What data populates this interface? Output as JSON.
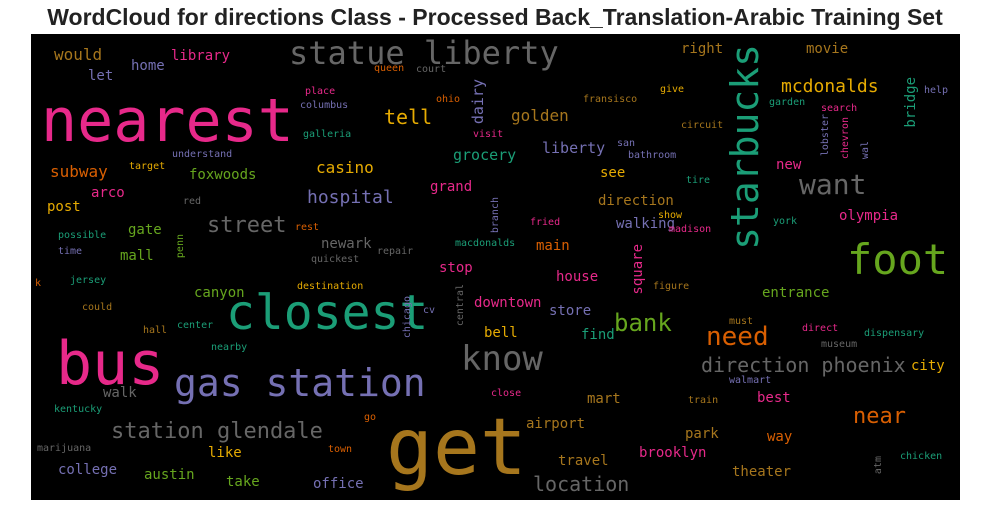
{
  "title": "WordCloud for directions Class - Processed Back_Translation-Arabic Training Set",
  "chart_data": {
    "type": "wordcloud",
    "title": "WordCloud for directions Class - Processed Back_Translation-Arabic Training Set",
    "background": "#000000",
    "colormap": "Dark2",
    "words": [
      {
        "text": "nearest",
        "color": "#e7298a"
      },
      {
        "text": "get",
        "color": "#a6761d"
      },
      {
        "text": "bus",
        "color": "#e7298a"
      },
      {
        "text": "closest",
        "color": "#1b9e77"
      },
      {
        "text": "gas station",
        "color": "#7570b3"
      },
      {
        "text": "statue liberty",
        "color": "#666666"
      },
      {
        "text": "starbucks",
        "color": "#1b9e77"
      },
      {
        "text": "foot",
        "color": "#66a61e"
      },
      {
        "text": "know",
        "color": "#666666"
      },
      {
        "text": "want",
        "color": "#666666"
      },
      {
        "text": "station glendale",
        "color": "#666666"
      },
      {
        "text": "direction phoenix",
        "color": "#666666"
      },
      {
        "text": "need",
        "color": "#d95f02"
      },
      {
        "text": "bank",
        "color": "#66a61e"
      },
      {
        "text": "location",
        "color": "#666666"
      },
      {
        "text": "mcdonalds",
        "color": "#e6ab02"
      },
      {
        "text": "near",
        "color": "#d95f02"
      },
      {
        "text": "street",
        "color": "#666666"
      },
      {
        "text": "hospital",
        "color": "#7570b3"
      },
      {
        "text": "tell",
        "color": "#e6ab02"
      },
      {
        "text": "casino",
        "color": "#e6ab02"
      },
      {
        "text": "subway",
        "color": "#d95f02"
      },
      {
        "text": "would",
        "color": "#a6761d"
      },
      {
        "text": "golden",
        "color": "#a6761d"
      },
      {
        "text": "grocery",
        "color": "#1b9e77"
      },
      {
        "text": "liberty",
        "color": "#7570b3"
      },
      {
        "text": "dairy",
        "color": "#7570b3"
      },
      {
        "text": "library",
        "color": "#e7298a"
      },
      {
        "text": "home",
        "color": "#7570b3"
      },
      {
        "text": "let",
        "color": "#7570b3"
      },
      {
        "text": "right",
        "color": "#a6761d"
      },
      {
        "text": "movie",
        "color": "#a6761d"
      },
      {
        "text": "bridge",
        "color": "#1b9e77"
      },
      {
        "text": "arco",
        "color": "#e7298a"
      },
      {
        "text": "post",
        "color": "#e6ab02"
      },
      {
        "text": "foxwoods",
        "color": "#66a61e"
      },
      {
        "text": "grand",
        "color": "#e7298a"
      },
      {
        "text": "see",
        "color": "#e6ab02"
      },
      {
        "text": "direction",
        "color": "#a6761d"
      },
      {
        "text": "walking",
        "color": "#7570b3"
      },
      {
        "text": "olympia",
        "color": "#e7298a"
      },
      {
        "text": "new",
        "color": "#e7298a"
      },
      {
        "text": "gate",
        "color": "#66a61e"
      },
      {
        "text": "mall",
        "color": "#66a61e"
      },
      {
        "text": "newark",
        "color": "#666666"
      },
      {
        "text": "main",
        "color": "#d95f02"
      },
      {
        "text": "stop",
        "color": "#e7298a"
      },
      {
        "text": "house",
        "color": "#e7298a"
      },
      {
        "text": "square",
        "color": "#e7298a"
      },
      {
        "text": "canyon",
        "color": "#66a61e"
      },
      {
        "text": "downtown",
        "color": "#e7298a"
      },
      {
        "text": "store",
        "color": "#7570b3"
      },
      {
        "text": "find",
        "color": "#1b9e77"
      },
      {
        "text": "bell",
        "color": "#e6ab02"
      },
      {
        "text": "entrance",
        "color": "#66a61e"
      },
      {
        "text": "city",
        "color": "#e6ab02"
      },
      {
        "text": "walk",
        "color": "#666666"
      },
      {
        "text": "airport",
        "color": "#a6761d"
      },
      {
        "text": "mart",
        "color": "#a6761d"
      },
      {
        "text": "best",
        "color": "#e7298a"
      },
      {
        "text": "park",
        "color": "#a6761d"
      },
      {
        "text": "way",
        "color": "#d95f02"
      },
      {
        "text": "brooklyn",
        "color": "#e7298a"
      },
      {
        "text": "travel",
        "color": "#a6761d"
      },
      {
        "text": "theater",
        "color": "#a6761d"
      },
      {
        "text": "like",
        "color": "#e6ab02"
      },
      {
        "text": "college",
        "color": "#7570b3"
      },
      {
        "text": "austin",
        "color": "#66a61e"
      },
      {
        "text": "take",
        "color": "#66a61e"
      },
      {
        "text": "office",
        "color": "#7570b3"
      },
      {
        "text": "queen",
        "color": "#d95f02"
      },
      {
        "text": "court",
        "color": "#666666"
      },
      {
        "text": "place",
        "color": "#e7298a"
      },
      {
        "text": "columbus",
        "color": "#7570b3"
      },
      {
        "text": "ohio",
        "color": "#d95f02"
      },
      {
        "text": "galleria",
        "color": "#1b9e77"
      },
      {
        "text": "visit",
        "color": "#e7298a"
      },
      {
        "text": "fransisco",
        "color": "#a6761d"
      },
      {
        "text": "san",
        "color": "#7570b3"
      },
      {
        "text": "bathroom",
        "color": "#7570b3"
      },
      {
        "text": "give",
        "color": "#e6ab02"
      },
      {
        "text": "circuit",
        "color": "#a6761d"
      },
      {
        "text": "tire",
        "color": "#1b9e77"
      },
      {
        "text": "garden",
        "color": "#1b9e77"
      },
      {
        "text": "search",
        "color": "#e7298a"
      },
      {
        "text": "lobster",
        "color": "#7570b3"
      },
      {
        "text": "chevron",
        "color": "#e7298a"
      },
      {
        "text": "wal",
        "color": "#7570b3"
      },
      {
        "text": "help",
        "color": "#7570b3"
      },
      {
        "text": "understand",
        "color": "#7570b3"
      },
      {
        "text": "target",
        "color": "#e6ab02"
      },
      {
        "text": "red",
        "color": "#666666"
      },
      {
        "text": "rest",
        "color": "#d95f02"
      },
      {
        "text": "branch",
        "color": "#7570b3"
      },
      {
        "text": "fried",
        "color": "#e7298a"
      },
      {
        "text": "show",
        "color": "#e6ab02"
      },
      {
        "text": "madison",
        "color": "#e7298a"
      },
      {
        "text": "york",
        "color": "#1b9e77"
      },
      {
        "text": "possible",
        "color": "#1b9e77"
      },
      {
        "text": "time",
        "color": "#7570b3"
      },
      {
        "text": "penn",
        "color": "#66a61e"
      },
      {
        "text": "repair",
        "color": "#666666"
      },
      {
        "text": "quickest",
        "color": "#666666"
      },
      {
        "text": "macdonalds",
        "color": "#1b9e77"
      },
      {
        "text": "jersey",
        "color": "#1b9e77"
      },
      {
        "text": "k",
        "color": "#d95f02"
      },
      {
        "text": "destination",
        "color": "#e6ab02"
      },
      {
        "text": "figure",
        "color": "#a6761d"
      },
      {
        "text": "could",
        "color": "#a6761d"
      },
      {
        "text": "hall",
        "color": "#a6761d"
      },
      {
        "text": "center",
        "color": "#1b9e77"
      },
      {
        "text": "chicago",
        "color": "#7570b3"
      },
      {
        "text": "cv",
        "color": "#7570b3"
      },
      {
        "text": "central",
        "color": "#666666"
      },
      {
        "text": "must",
        "color": "#a6761d"
      },
      {
        "text": "direct",
        "color": "#e7298a"
      },
      {
        "text": "dispensary",
        "color": "#1b9e77"
      },
      {
        "text": "museum",
        "color": "#666666"
      },
      {
        "text": "nearby",
        "color": "#1b9e77"
      },
      {
        "text": "walmart",
        "color": "#7570b3"
      },
      {
        "text": "close",
        "color": "#e7298a"
      },
      {
        "text": "train",
        "color": "#a6761d"
      },
      {
        "text": "kentucky",
        "color": "#1b9e77"
      },
      {
        "text": "go",
        "color": "#d95f02"
      },
      {
        "text": "marijuana",
        "color": "#666666"
      },
      {
        "text": "town",
        "color": "#d95f02"
      },
      {
        "text": "atm",
        "color": "#666666"
      },
      {
        "text": "chicken",
        "color": "#1b9e77"
      }
    ]
  }
}
